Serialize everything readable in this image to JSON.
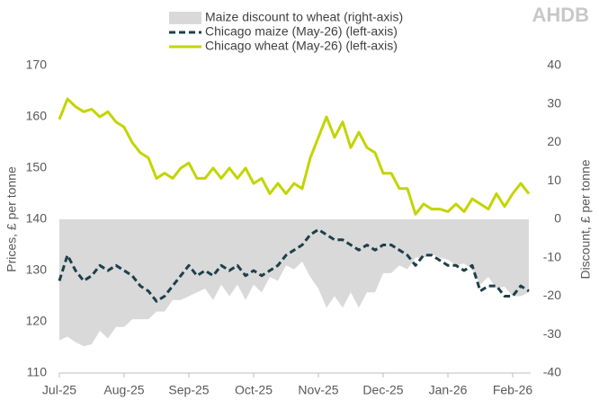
{
  "chart_data": {
    "type": "line",
    "brand": "AHDB",
    "y_label": "Prices, £ per tonne",
    "y2_label": "Discount, £ per tonne",
    "categories": [
      "Jul-25",
      null,
      null,
      null,
      null,
      null,
      null,
      null,
      "Aug-25",
      null,
      null,
      null,
      null,
      null,
      null,
      null,
      "Sep-25",
      null,
      null,
      null,
      null,
      null,
      null,
      null,
      "Oct-25",
      null,
      null,
      null,
      null,
      null,
      null,
      null,
      "Nov-25",
      null,
      null,
      null,
      null,
      null,
      null,
      null,
      "Dec-25",
      null,
      null,
      null,
      null,
      null,
      null,
      null,
      "Jan-26",
      null,
      null,
      null,
      null,
      null,
      null,
      null,
      "Feb-26",
      null,
      null
    ],
    "ylim": [
      110,
      170
    ],
    "yticks": [
      110,
      120,
      130,
      140,
      150,
      160,
      170
    ],
    "y2lim": [
      -40,
      40
    ],
    "y2ticks": [
      -40,
      -30,
      -20,
      -10,
      0,
      10,
      20,
      30,
      40
    ],
    "series": [
      {
        "name": "Maize discount to wheat (right-axis)",
        "type": "area",
        "axis": "y2",
        "color": "#d9d9d9",
        "values": [
          -31.5,
          -30.5,
          -32,
          -33,
          -32.5,
          -29,
          -31,
          -28,
          -28,
          -26,
          -26,
          -26,
          -24,
          -24,
          -21,
          -21,
          -20,
          -19,
          -18,
          -21,
          -17,
          -20,
          -17,
          -21,
          -17,
          -19,
          -15,
          -16,
          -12,
          -13,
          -11,
          -15,
          -18,
          -23,
          -20,
          -23,
          -19,
          -23,
          -19,
          -19,
          -14,
          -14,
          -12,
          -13,
          -10,
          -10,
          -9,
          -10,
          -10.5,
          -12,
          -11.5,
          -13,
          -17,
          -15,
          -18,
          -17.5,
          -20,
          -20,
          -19
        ]
      },
      {
        "name": "Chicago maize (May-26) (left-axis)",
        "type": "line",
        "dashed": true,
        "color": "#1d3f4b",
        "values": [
          128,
          133,
          130,
          128,
          129,
          131,
          130,
          131,
          130,
          129,
          127,
          126,
          124,
          125,
          127,
          129,
          131,
          129,
          130,
          129,
          131,
          130,
          131,
          129,
          130,
          129,
          130,
          131,
          133,
          134,
          135,
          137,
          138,
          137,
          136,
          136,
          135,
          134,
          135,
          134,
          135,
          135,
          134,
          133,
          131,
          133,
          133,
          132,
          131,
          131,
          130,
          131,
          126,
          127,
          127,
          125,
          125,
          127,
          126
        ]
      },
      {
        "name": "Chicago wheat (May-26) (left-axis)",
        "type": "line",
        "dashed": false,
        "color": "#c3d500",
        "values": [
          159.5,
          163.5,
          162,
          161,
          161.5,
          160,
          161,
          159,
          158,
          155,
          153,
          152,
          148,
          149,
          148,
          150,
          151,
          148,
          148,
          150,
          148,
          150,
          148,
          150,
          147,
          148,
          145,
          147,
          145,
          147,
          146,
          152,
          156,
          160,
          156,
          159,
          154,
          157,
          154,
          153,
          149,
          149,
          146,
          146,
          141,
          143,
          142,
          142,
          141.5,
          143,
          141.5,
          144,
          143,
          142,
          145,
          142.5,
          145,
          147,
          145
        ]
      }
    ]
  }
}
